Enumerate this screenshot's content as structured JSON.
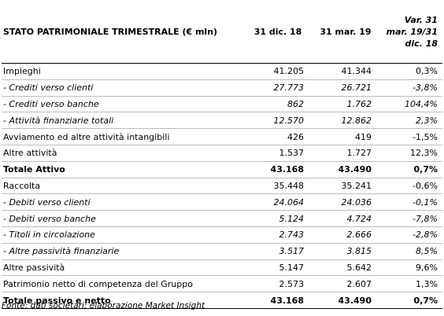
{
  "table": {
    "header": {
      "label": "STATO PATRIMONIALE TRIMESTRALE (€ mln)",
      "col1": "31 dic. 18",
      "col2": "31 mar. 19",
      "col3_lines": [
        "Var. 31",
        "mar. 19/31",
        "dic. 18"
      ]
    },
    "rows": [
      {
        "label": "Impieghi",
        "v1": "41.205",
        "v2": "41.344",
        "v3": "0,3%",
        "style": "normal"
      },
      {
        "label": "- Crediti verso clienti",
        "v1": "27.773",
        "v2": "26.721",
        "v3": "-3,8%",
        "style": "italic"
      },
      {
        "label": "- Crediti verso banche",
        "v1": "862",
        "v2": "1.762",
        "v3": "104,4%",
        "style": "italic"
      },
      {
        "label": "- Attività finanziarie totali",
        "v1": "12.570",
        "v2": "12.862",
        "v3": "2,3%",
        "style": "italic"
      },
      {
        "label": "Avviamento ed altre attività intangibili",
        "v1": "426",
        "v2": "419",
        "v3": "-1,5%",
        "style": "normal"
      },
      {
        "label": "Altre attività",
        "v1": "1.537",
        "v2": "1.727",
        "v3": "12,3%",
        "style": "normal"
      },
      {
        "label": "Totale Attivo",
        "v1": "43.168",
        "v2": "43.490",
        "v3": "0,7%",
        "style": "bold"
      },
      {
        "label": "Raccolta",
        "v1": "35.448",
        "v2": "35.241",
        "v3": "-0,6%",
        "style": "normal"
      },
      {
        "label": "- Debiti verso clienti",
        "v1": "24.064",
        "v2": "24.036",
        "v3": "-0,1%",
        "style": "italic"
      },
      {
        "label": "- Debiti verso banche",
        "v1": "5.124",
        "v2": "4.724",
        "v3": "-7,8%",
        "style": "italic"
      },
      {
        "label": "- Titoli in circolazione",
        "v1": "2.743",
        "v2": "2.666",
        "v3": "-2,8%",
        "style": "italic"
      },
      {
        "label": "- Altre passività finanziarie",
        "v1": "3.517",
        "v2": "3.815",
        "v3": "8,5%",
        "style": "italic"
      },
      {
        "label": "Altre passività",
        "v1": "5.147",
        "v2": "5.642",
        "v3": "9,6%",
        "style": "normal"
      },
      {
        "label": "Patrimonio netto di competenza del Gruppo",
        "v1": "2.573",
        "v2": "2.607",
        "v3": "1,3%",
        "style": "normal"
      },
      {
        "label": "Totale passivo e netto",
        "v1": "43.168",
        "v2": "43.490",
        "v3": "0,7%",
        "style": "bold-total"
      }
    ]
  },
  "source": "Fonte: dati societari; elaborazione Market Insight"
}
